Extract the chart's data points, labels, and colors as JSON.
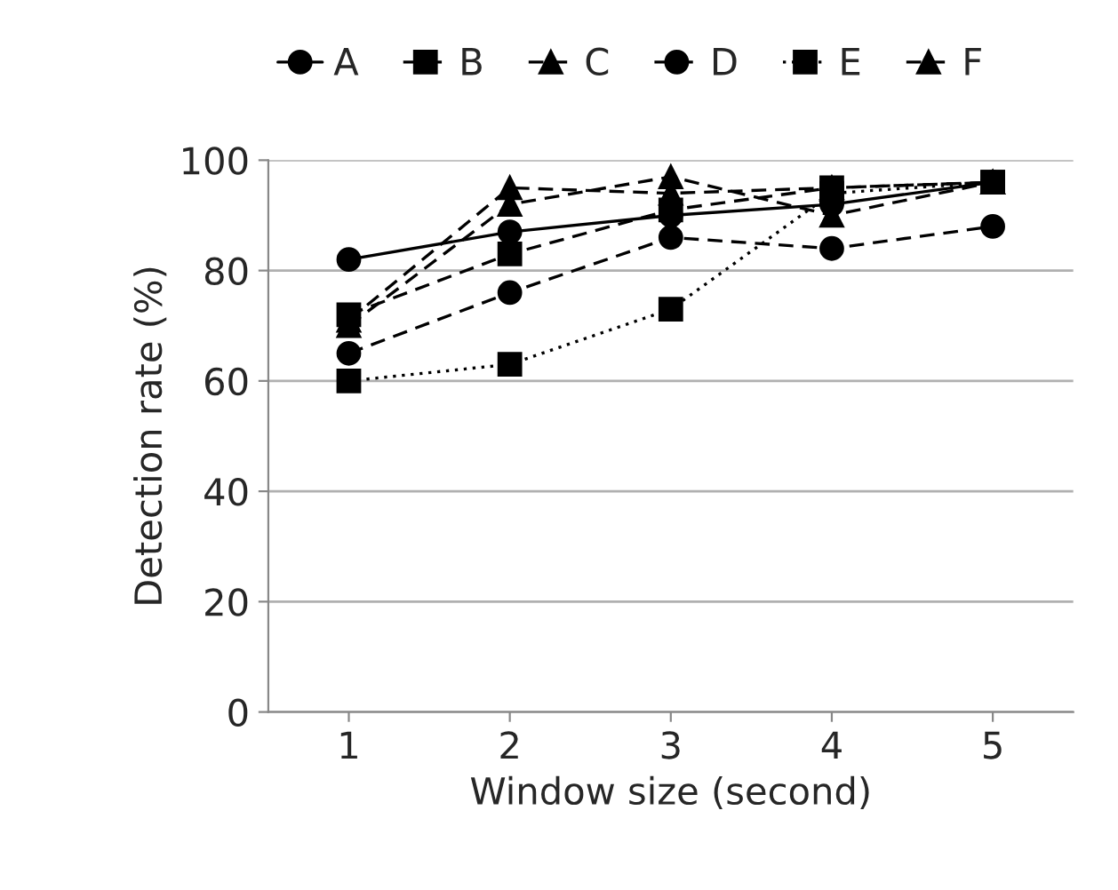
{
  "chart_data": {
    "type": "line",
    "xlabel": "Window size (second)",
    "ylabel": "Detection rate (%)",
    "categories": [
      "1",
      "2",
      "3",
      "4",
      "5"
    ],
    "series": [
      {
        "name": "A",
        "color": "#000000",
        "marker": "circle",
        "line_style": "solid",
        "values": [
          82,
          87,
          90,
          92,
          96
        ]
      },
      {
        "name": "B",
        "color": "#000000",
        "marker": "square",
        "line_style": "dashed",
        "values": [
          72,
          83,
          91,
          95,
          96
        ]
      },
      {
        "name": "C",
        "color": "#000000",
        "marker": "triangle",
        "line_style": "dashed",
        "values": [
          70,
          92,
          97,
          90,
          96
        ]
      },
      {
        "name": "D",
        "color": "#000000",
        "marker": "circle",
        "line_style": "dashed",
        "values": [
          65,
          76,
          86,
          84,
          88
        ]
      },
      {
        "name": "E",
        "color": "#000000",
        "marker": "square",
        "line_style": "dotted",
        "values": [
          60,
          63,
          73,
          94,
          96
        ]
      },
      {
        "name": "F",
        "color": "#000000",
        "marker": "triangle",
        "line_style": "dashed",
        "values": [
          71,
          95,
          94,
          95,
          96
        ]
      }
    ],
    "ylim": [
      0,
      100
    ],
    "yticks": [
      0,
      20,
      40,
      60,
      80,
      100
    ],
    "grid": "y",
    "legend": "top"
  }
}
